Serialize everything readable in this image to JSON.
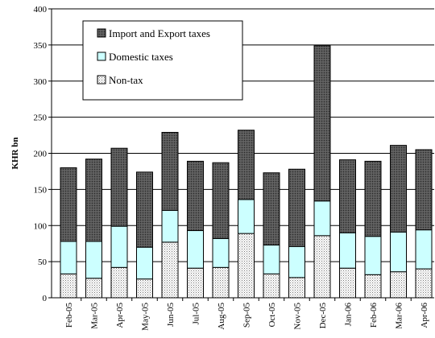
{
  "chart_data": {
    "type": "bar",
    "stacked": true,
    "ylabel": "KHR bn",
    "ylim": [
      0,
      400
    ],
    "ytick_step": 50,
    "grid": true,
    "legend_position": "top-left",
    "categories": [
      "Feb-05",
      "Mar-05",
      "Apr-05",
      "May-05",
      "Jun-05",
      "Jul-05",
      "Aug-05",
      "Sep-05",
      "Oct-05",
      "Nov-05",
      "Dec-05",
      "Jan-06",
      "Feb-06",
      "Mar-06",
      "Apr-06"
    ],
    "series": [
      {
        "name": "Non-tax",
        "pattern": "dots",
        "values": [
          33,
          27,
          42,
          26,
          77,
          41,
          42,
          89,
          33,
          28,
          86,
          41,
          32,
          36,
          40
        ]
      },
      {
        "name": "Domestic taxes",
        "color": "#ccffff",
        "values": [
          45,
          51,
          57,
          44,
          44,
          52,
          40,
          47,
          40,
          43,
          48,
          49,
          53,
          55,
          54
        ]
      },
      {
        "name": "Import and Export taxes",
        "pattern": "dark-dots",
        "values": [
          102,
          114,
          108,
          104,
          108,
          96,
          105,
          96,
          100,
          107,
          215,
          101,
          104,
          120,
          111
        ]
      }
    ]
  }
}
